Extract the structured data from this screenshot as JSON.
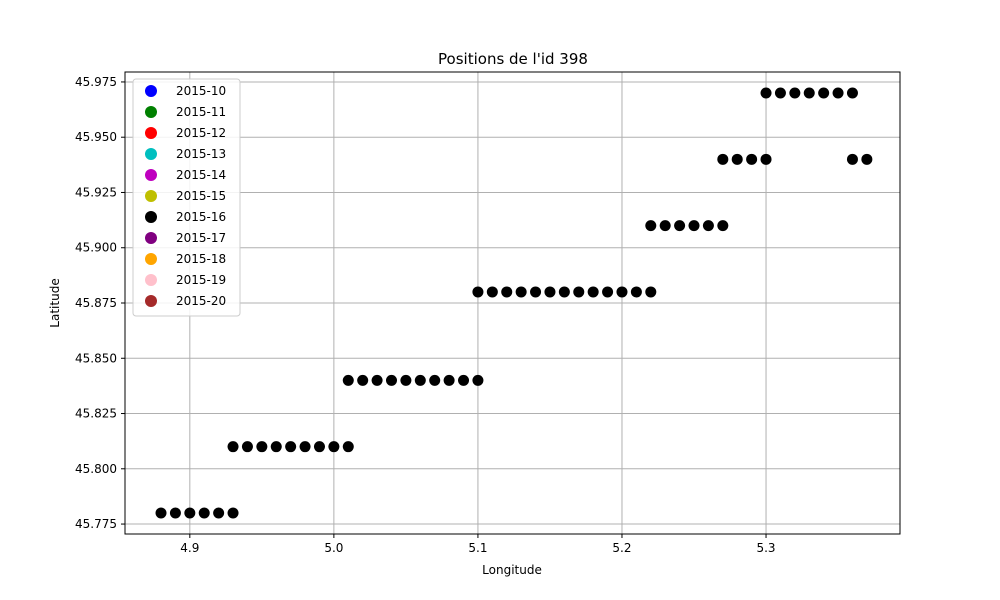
{
  "chart_data": {
    "type": "scatter",
    "title": "Positions de l'id 398",
    "xlabel": "Longitude",
    "ylabel": "Latitude",
    "xlim": [
      4.855,
      5.393
    ],
    "ylim": [
      45.7705,
      45.9795
    ],
    "x_ticks": [
      4.9,
      5.0,
      5.1,
      5.2,
      5.3
    ],
    "x_tick_labels": [
      "4.9",
      "5.0",
      "5.1",
      "5.2",
      "5.3"
    ],
    "y_ticks": [
      45.775,
      45.8,
      45.825,
      45.85,
      45.875,
      45.9,
      45.925,
      45.95,
      45.975
    ],
    "y_tick_labels": [
      "45.775",
      "45.800",
      "45.825",
      "45.850",
      "45.875",
      "45.900",
      "45.925",
      "45.950",
      "45.975"
    ],
    "grid": true,
    "legend_position": "top-left",
    "legend": [
      {
        "label": "2015-10",
        "color": "#0000ff"
      },
      {
        "label": "2015-11",
        "color": "#008000"
      },
      {
        "label": "2015-12",
        "color": "#ff0000"
      },
      {
        "label": "2015-13",
        "color": "#00bfbf"
      },
      {
        "label": "2015-14",
        "color": "#bf00bf"
      },
      {
        "label": "2015-15",
        "color": "#bfbf00"
      },
      {
        "label": "2015-16",
        "color": "#000000"
      },
      {
        "label": "2015-17",
        "color": "#800080"
      },
      {
        "label": "2015-18",
        "color": "#ffa500"
      },
      {
        "label": "2015-19",
        "color": "#ffc0cb"
      },
      {
        "label": "2015-20",
        "color": "#a52a2a"
      }
    ],
    "series": [
      {
        "name": "2015-16",
        "color": "#000000",
        "points": [
          [
            4.88,
            45.78
          ],
          [
            4.89,
            45.78
          ],
          [
            4.9,
            45.78
          ],
          [
            4.91,
            45.78
          ],
          [
            4.92,
            45.78
          ],
          [
            4.93,
            45.78
          ],
          [
            4.93,
            45.81
          ],
          [
            4.94,
            45.81
          ],
          [
            4.95,
            45.81
          ],
          [
            4.96,
            45.81
          ],
          [
            4.97,
            45.81
          ],
          [
            4.98,
            45.81
          ],
          [
            4.99,
            45.81
          ],
          [
            5.0,
            45.81
          ],
          [
            5.01,
            45.81
          ],
          [
            5.01,
            45.84
          ],
          [
            5.02,
            45.84
          ],
          [
            5.03,
            45.84
          ],
          [
            5.04,
            45.84
          ],
          [
            5.05,
            45.84
          ],
          [
            5.06,
            45.84
          ],
          [
            5.07,
            45.84
          ],
          [
            5.08,
            45.84
          ],
          [
            5.09,
            45.84
          ],
          [
            5.1,
            45.84
          ],
          [
            5.1,
            45.88
          ],
          [
            5.11,
            45.88
          ],
          [
            5.12,
            45.88
          ],
          [
            5.13,
            45.88
          ],
          [
            5.14,
            45.88
          ],
          [
            5.15,
            45.88
          ],
          [
            5.16,
            45.88
          ],
          [
            5.17,
            45.88
          ],
          [
            5.18,
            45.88
          ],
          [
            5.19,
            45.88
          ],
          [
            5.2,
            45.88
          ],
          [
            5.21,
            45.88
          ],
          [
            5.22,
            45.88
          ],
          [
            5.22,
            45.91
          ],
          [
            5.23,
            45.91
          ],
          [
            5.24,
            45.91
          ],
          [
            5.25,
            45.91
          ],
          [
            5.26,
            45.91
          ],
          [
            5.27,
            45.91
          ],
          [
            5.27,
            45.94
          ],
          [
            5.28,
            45.94
          ],
          [
            5.29,
            45.94
          ],
          [
            5.3,
            45.94
          ],
          [
            5.36,
            45.94
          ],
          [
            5.37,
            45.94
          ],
          [
            5.3,
            45.97
          ],
          [
            5.31,
            45.97
          ],
          [
            5.32,
            45.97
          ],
          [
            5.33,
            45.97
          ],
          [
            5.34,
            45.97
          ],
          [
            5.35,
            45.97
          ],
          [
            5.36,
            45.97
          ]
        ]
      }
    ]
  }
}
